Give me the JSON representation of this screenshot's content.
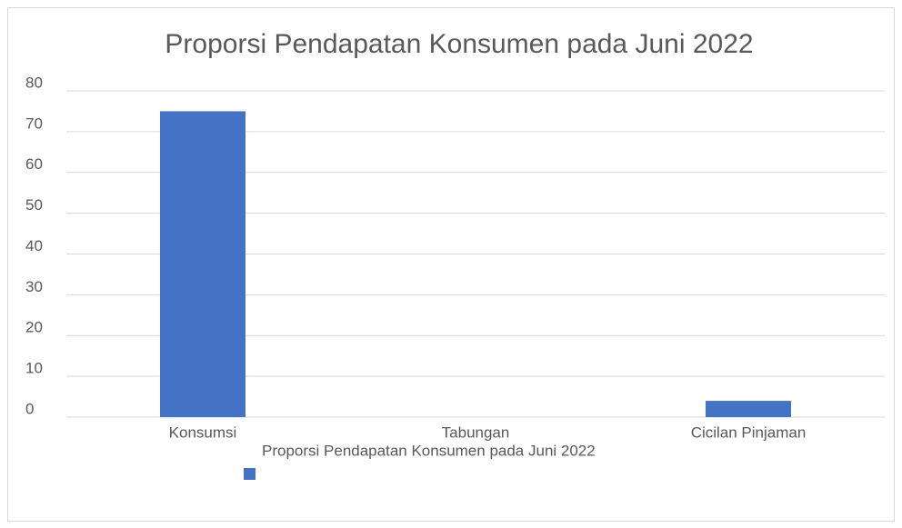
{
  "chart_data": {
    "type": "bar",
    "title": "Proporsi Pendapatan Konsumen pada Juni 2022",
    "categories": [
      "Konsumsi",
      "Tabungan",
      "Cicilan Pinjaman"
    ],
    "series": [
      {
        "name": "Proporsi Pendapatan Konsumen pada Juni 2022",
        "color": "#4472c4",
        "values": [
          75,
          0,
          4
        ]
      }
    ],
    "ylim": [
      0,
      80
    ],
    "yticks": [
      0,
      10,
      20,
      30,
      40,
      50,
      60,
      70,
      80
    ],
    "grid": true,
    "legend": "bottom"
  }
}
